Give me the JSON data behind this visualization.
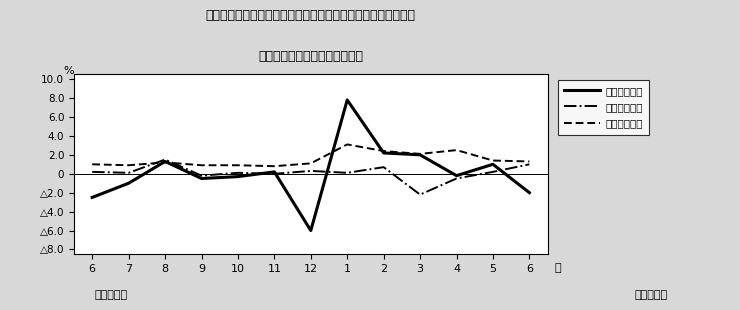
{
  "title_line1": "第４図　賃金、労働時間、常用雇用指数　対前年同月比の推移",
  "title_line2": "（規模５人以上　調査産業計）",
  "xlabel_months": [
    "6",
    "7",
    "8",
    "9",
    "10",
    "11",
    "12",
    "1",
    "2",
    "3",
    "4",
    "5",
    "6"
  ],
  "xlabel_bottom1": "平成２２年",
  "xlabel_bottom2": "平成２３年",
  "xlabel_month_label": "月",
  "ylabel": "%",
  "ylim": [
    -8.5,
    10.5
  ],
  "ytick_vals": [
    10.0,
    8.0,
    6.0,
    4.0,
    2.0,
    0.0,
    -2.0,
    -4.0,
    -6.0,
    -8.0
  ],
  "ytick_labels": [
    "10.0",
    "8.0",
    "6.0",
    "4.0",
    "2.0",
    "0",
    "△2.0",
    "△4.0",
    "△6.0",
    "△8.0"
  ],
  "genkin": [
    -2.5,
    -1.0,
    1.3,
    -0.5,
    -0.3,
    0.2,
    -6.0,
    7.8,
    2.2,
    2.0,
    -0.2,
    1.0,
    -2.0
  ],
  "jitsu": [
    0.2,
    0.1,
    1.5,
    -0.2,
    0.1,
    0.0,
    0.3,
    0.1,
    0.7,
    -2.2,
    -0.5,
    0.2,
    1.0
  ],
  "joyou": [
    1.0,
    0.9,
    1.2,
    0.9,
    0.9,
    0.8,
    1.1,
    3.1,
    2.4,
    2.1,
    2.5,
    1.4,
    1.3
  ],
  "legend_labels": [
    "現金給与総額",
    "総実労働時間",
    "常用雇用指数"
  ],
  "bg_color": "#d8d8d8",
  "plot_bg_color": "white"
}
